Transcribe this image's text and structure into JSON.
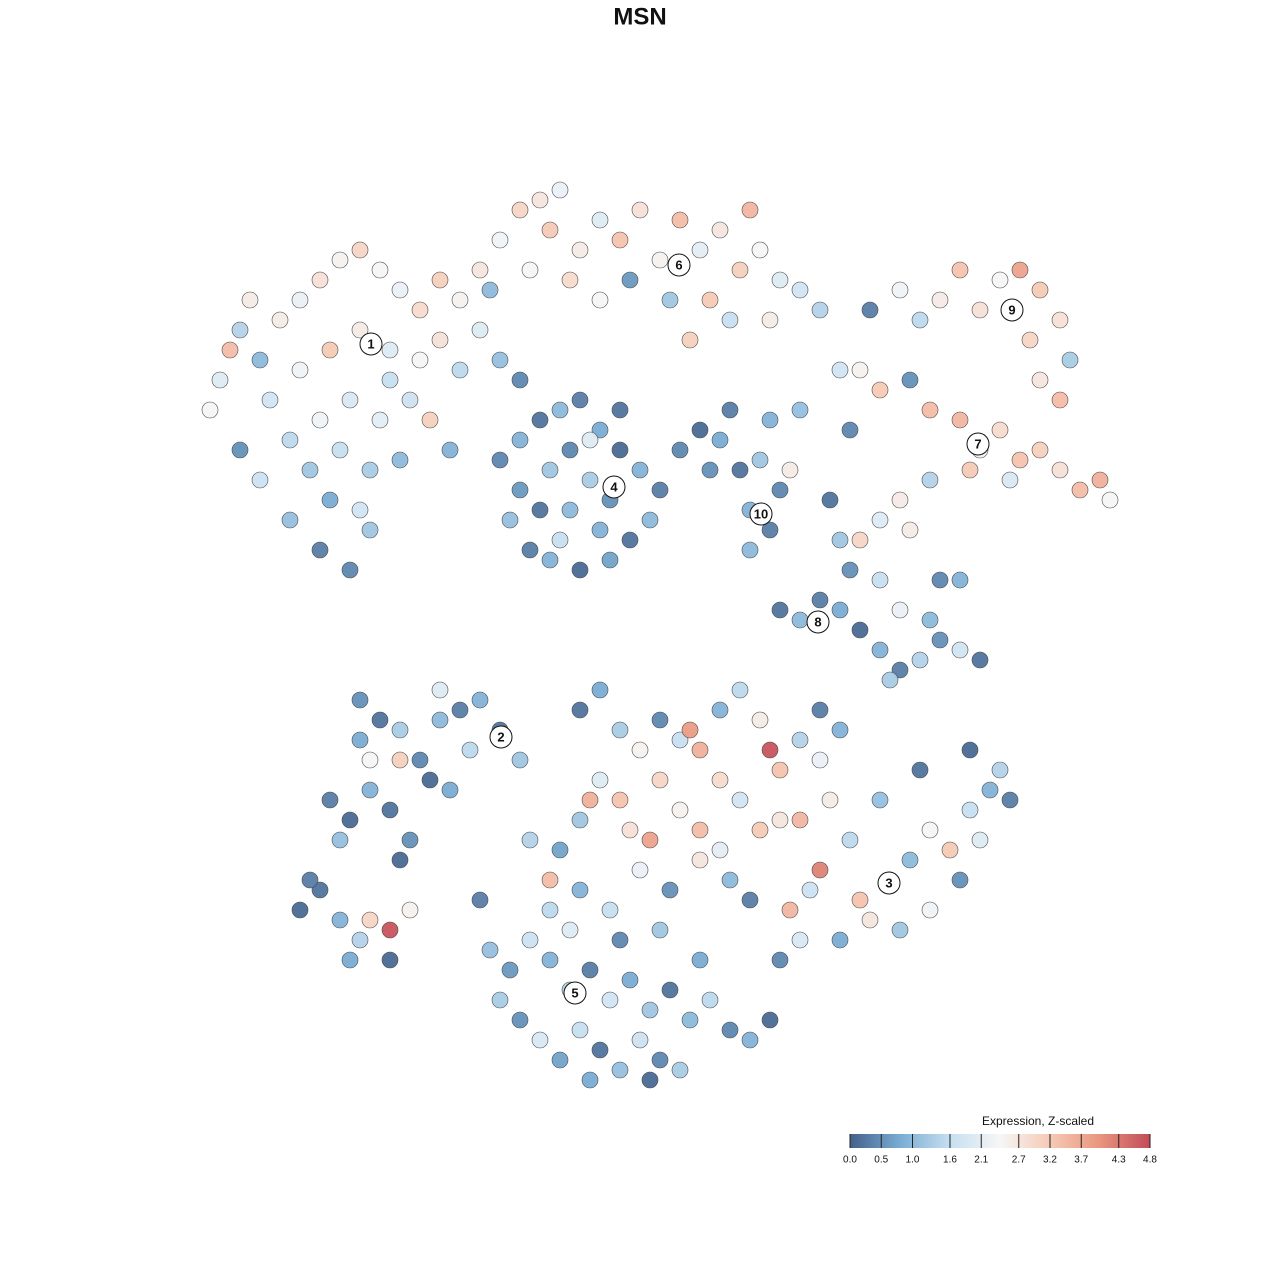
{
  "chart_data": {
    "type": "scatter",
    "title": "MSN",
    "xlim": [
      0,
      128
    ],
    "ylim": [
      128,
      0
    ],
    "x": [
      22,
      24,
      21,
      26,
      28,
      30,
      32,
      34,
      36,
      38,
      40,
      42,
      44,
      46,
      48,
      27,
      29,
      31,
      33,
      32,
      35,
      37,
      30,
      33,
      36,
      39,
      42,
      44,
      35,
      38,
      41,
      34,
      37,
      40,
      36,
      24,
      26,
      29,
      43,
      46,
      48,
      50,
      52,
      45,
      25,
      23,
      32,
      39,
      50,
      52,
      54,
      56,
      55,
      58,
      60,
      62,
      64,
      66,
      68,
      70,
      72,
      74,
      76,
      78,
      80,
      82,
      71,
      67,
      63,
      60,
      57,
      53,
      49,
      73,
      77,
      69,
      75,
      87,
      90,
      92,
      94,
      96,
      98,
      100,
      102,
      104,
      106,
      103,
      107,
      104,
      106,
      86,
      88,
      91,
      93,
      96,
      98,
      100,
      102,
      104,
      106,
      108,
      110,
      111,
      101,
      97,
      93,
      90,
      88,
      86,
      91,
      85,
      84,
      50,
      52,
      54,
      56,
      58,
      60,
      62,
      64,
      66,
      65,
      63,
      61,
      58,
      55,
      53,
      51,
      52,
      55,
      57,
      59,
      61,
      57,
      54,
      60,
      56,
      62,
      59,
      68,
      70,
      72,
      74,
      76,
      78,
      79,
      75,
      77,
      75,
      71,
      73,
      77,
      80,
      83,
      84,
      85,
      82,
      80,
      78,
      84,
      86,
      88,
      90,
      92,
      94,
      96,
      98,
      93,
      90,
      88,
      94,
      96,
      89,
      33,
      35,
      37,
      39,
      41,
      40,
      36,
      38,
      40,
      42,
      44,
      46,
      48,
      50,
      47,
      43,
      37,
      40,
      34,
      45,
      52,
      36,
      44,
      30,
      32,
      34,
      36,
      37,
      39,
      41,
      35,
      39,
      31,
      58,
      60,
      62,
      64,
      66,
      68,
      69,
      70,
      72,
      74,
      76,
      77,
      78,
      80,
      82,
      84,
      82,
      60,
      62,
      58,
      56,
      59,
      63,
      66,
      68,
      70,
      72,
      74,
      76,
      78,
      80,
      83,
      82,
      81,
      79,
      85,
      86,
      89,
      91,
      93,
      95,
      97,
      99,
      101,
      98,
      96,
      93,
      90,
      87,
      84,
      80,
      78,
      100,
      92,
      88,
      58,
      61,
      64,
      67,
      70,
      73,
      75,
      55,
      53,
      65,
      72,
      97,
      49,
      51,
      53,
      55,
      57,
      59,
      61,
      63,
      65,
      67,
      69,
      71,
      73,
      75,
      77,
      50,
      52,
      54,
      56,
      58,
      60,
      62,
      64,
      66,
      68,
      65,
      59,
      55,
      62,
      66,
      70,
      48,
      57
    ],
    "y": [
      38,
      33,
      41,
      36,
      32,
      30,
      28,
      26,
      25,
      27,
      29,
      31,
      28,
      30,
      27,
      40,
      44,
      47,
      50,
      55,
      57,
      53,
      37,
      35,
      33,
      35,
      36,
      34,
      40,
      42,
      40,
      45,
      47,
      46,
      51,
      45,
      48,
      52,
      42,
      37,
      33,
      36,
      38,
      45,
      30,
      35,
      42,
      38,
      24,
      21,
      20,
      19,
      23,
      25,
      22,
      24,
      21,
      26,
      22,
      25,
      23,
      27,
      25,
      28,
      29,
      31,
      30,
      30,
      28,
      30,
      28,
      27,
      29,
      32,
      32,
      34,
      21,
      31,
      29,
      32,
      30,
      27,
      31,
      28,
      27,
      29,
      32,
      34,
      36,
      38,
      40,
      37,
      39,
      38,
      41,
      42,
      45,
      43,
      46,
      45,
      47,
      49,
      48,
      50,
      48,
      47,
      48,
      50,
      52,
      54,
      53,
      43,
      37,
      46,
      44,
      42,
      41,
      40,
      43,
      45,
      47,
      49,
      52,
      54,
      56,
      57,
      56,
      55,
      52,
      49,
      47,
      45,
      48,
      50,
      51,
      51,
      53,
      54,
      41,
      44,
      45,
      43,
      44,
      47,
      46,
      49,
      47,
      51,
      53,
      55,
      47,
      41,
      42,
      41,
      50,
      54,
      57,
      60,
      62,
      61,
      61,
      63,
      65,
      67,
      66,
      64,
      65,
      66,
      62,
      61,
      58,
      58,
      58,
      68,
      80,
      82,
      79,
      81,
      84,
      86,
      74,
      72,
      73,
      76,
      72,
      71,
      70,
      73,
      75,
      78,
      76,
      76,
      84,
      79,
      76,
      70,
      69,
      91,
      89,
      92,
      94,
      92,
      93,
      91,
      96,
      96,
      88,
      71,
      69,
      73,
      75,
      72,
      74,
      73,
      75,
      71,
      69,
      72,
      75,
      77,
      74,
      71,
      73,
      76,
      78,
      80,
      82,
      85,
      80,
      83,
      78,
      81,
      83,
      78,
      80,
      83,
      82,
      82,
      80,
      87,
      89,
      91,
      84,
      90,
      88,
      86,
      83,
      85,
      81,
      79,
      80,
      84,
      88,
      91,
      93,
      92,
      94,
      94,
      96,
      77,
      77,
      80,
      89,
      91,
      87,
      89,
      86,
      88,
      90,
      88,
      84,
      84,
      85,
      75,
      95,
      97,
      94,
      96,
      99,
      97,
      100,
      98,
      101,
      99,
      102,
      100,
      103,
      104,
      102,
      100,
      102,
      104,
      106,
      103,
      105,
      107,
      104,
      106,
      107,
      108,
      108,
      91,
      94,
      93,
      96,
      90,
      93
    ],
    "values": [
      2.0,
      1.4,
      2.4,
      1.0,
      2.6,
      2.2,
      2.8,
      2.5,
      3.0,
      2.4,
      2.2,
      2.9,
      3.1,
      2.5,
      2.7,
      1.8,
      1.5,
      1.2,
      0.8,
      0.3,
      0.4,
      1.2,
      2.3,
      3.2,
      2.6,
      2.0,
      2.4,
      2.8,
      1.9,
      2.1,
      1.7,
      1.6,
      1.3,
      1.0,
      1.8,
      0.5,
      1.7,
      1.1,
      3.1,
      1.5,
      2.0,
      1.1,
      0.4,
      0.9,
      2.6,
      3.4,
      2.3,
      1.6,
      2.3,
      3.0,
      2.7,
      2.2,
      3.2,
      2.6,
      2.0,
      3.3,
      2.8,
      2.5,
      3.4,
      2.1,
      2.7,
      3.1,
      2.4,
      2.0,
      1.8,
      1.4,
      3.2,
      1.2,
      0.6,
      2.4,
      2.9,
      2.4,
      1.0,
      1.6,
      2.6,
      3.1,
      3.5,
      0.3,
      2.3,
      1.5,
      2.6,
      3.3,
      2.8,
      2.4,
      3.8,
      3.2,
      2.8,
      3.0,
      1.3,
      2.7,
      3.4,
      2.5,
      3.2,
      0.5,
      3.4,
      3.5,
      2.5,
      2.9,
      3.3,
      3.1,
      2.8,
      3.4,
      3.6,
      2.4,
      1.9,
      3.2,
      1.4,
      2.6,
      2.0,
      3.0,
      2.6,
      0.4,
      1.8,
      0.4,
      0.9,
      0.2,
      1.0,
      0.3,
      0.8,
      0.1,
      0.9,
      0.3,
      1.0,
      0.2,
      0.7,
      0.1,
      0.9,
      0.3,
      1.1,
      0.6,
      1.2,
      0.4,
      1.3,
      0.5,
      1.0,
      0.2,
      0.9,
      1.6,
      0.2,
      2.0,
      0.4,
      0.1,
      0.8,
      0.2,
      1.2,
      0.4,
      2.6,
      0.9,
      0.3,
      1.0,
      0.5,
      0.3,
      0.9,
      1.1,
      0.2,
      1.2,
      0.5,
      0.3,
      1.0,
      0.2,
      0.8,
      0.1,
      0.9,
      0.3,
      1.4,
      0.5,
      1.8,
      0.2,
      1.0,
      2.2,
      1.6,
      0.4,
      0.9,
      1.3,
      0.3,
      0.1,
      0.9,
      0.2,
      0.5,
      0.1,
      0.8,
      0.2,
      1.3,
      0.4,
      1.0,
      0.3,
      0.9,
      0.2,
      1.5,
      0.1,
      2.4,
      3.1,
      1.1,
      0.8,
      1.2,
      0.5,
      2.0,
      0.1,
      0.2,
      0.9,
      1.4,
      3.0,
      4.7,
      2.5,
      0.8,
      0.1,
      0.3,
      0.2,
      0.8,
      1.3,
      2.5,
      0.4,
      1.6,
      3.9,
      3.6,
      0.9,
      1.5,
      2.6,
      4.7,
      3.3,
      1.4,
      0.3,
      0.9,
      2.2,
      2.0,
      3.3,
      1.2,
      0.7,
      3.6,
      2.8,
      3.0,
      2.5,
      3.4,
      2.9,
      1.8,
      3.2,
      2.7,
      3.5,
      2.6,
      4.2,
      1.7,
      3.5,
      1.5,
      3.3,
      2.6,
      1.0,
      2.4,
      3.2,
      1.6,
      0.9,
      0.3,
      2.0,
      0.5,
      2.3,
      1.2,
      2.7,
      0.8,
      1.9,
      0.4,
      1.4,
      0.2,
      1.1,
      0.9,
      1.6,
      2.2,
      0.5,
      2.7,
      1.0,
      0.3,
      3.4,
      1.4,
      3.8,
      2.1,
      0.1,
      1.1,
      0.6,
      1.7,
      0.9,
      1.4,
      0.3,
      1.8,
      0.8,
      1.2,
      0.2,
      1.0,
      1.5,
      0.4,
      0.9,
      0.1,
      1.3,
      0.5,
      1.9,
      0.7,
      1.6,
      0.2,
      1.1,
      1.7,
      0.4,
      1.3,
      0.1,
      0.8,
      1.5,
      0.4,
      1.2,
      0.8,
      0.3,
      2.0
    ],
    "cluster_labels": {
      "text": [
        "1",
        "2",
        "3",
        "4",
        "5",
        "6",
        "7",
        "8",
        "9",
        "10"
      ],
      "x": [
        37.1,
        50.1,
        88.9,
        61.4,
        57.5,
        67.9,
        97.8,
        81.8,
        101.2,
        76.1
      ],
      "y": [
        34.4,
        73.7,
        88.3,
        48.7,
        99.3,
        26.5,
        44.4,
        62.2,
        31.0,
        51.4
      ]
    },
    "colorbar": {
      "title": "Expression, Z-scaled",
      "lim": [
        0,
        4.8
      ],
      "ticks": [
        {
          "value": 0,
          "label": "0.0"
        },
        0.5,
        {
          "value": 1,
          "label": "1.0"
        },
        1.6,
        2.1,
        2.7,
        3.2,
        3.7,
        4.3,
        4.8
      ],
      "colors": [
        "#43618a",
        "#79acd3",
        "#c6dff0",
        "#f6f6f6",
        "#f6cab5",
        "#e8957f",
        "#c24b59"
      ]
    }
  }
}
